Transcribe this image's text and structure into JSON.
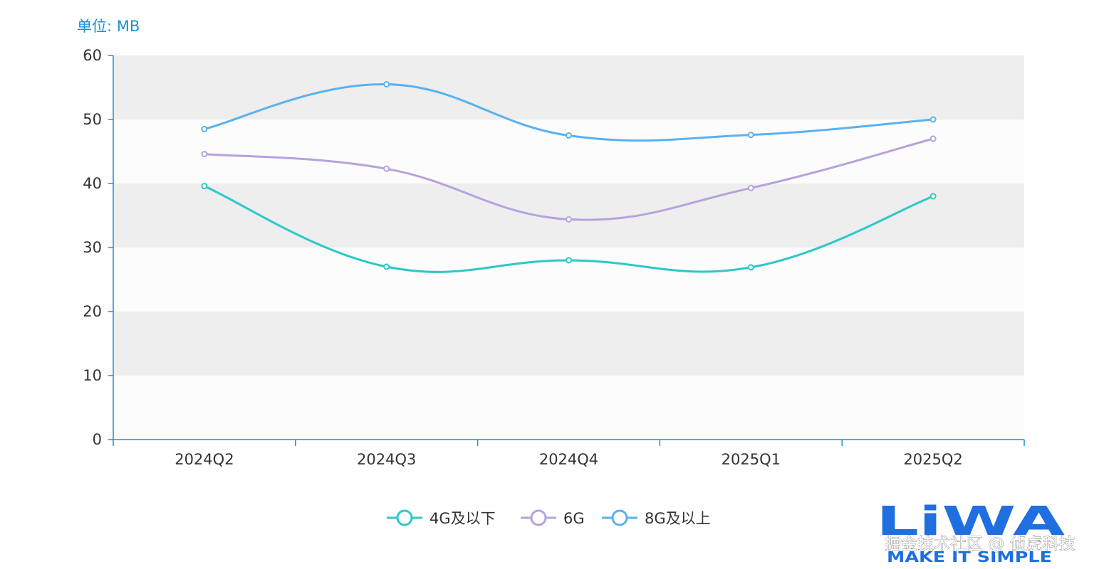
{
  "chart_data": {
    "type": "line",
    "smooth": true,
    "unit_label": "单位: MB",
    "categories": [
      "2024Q2",
      "2024Q3",
      "2024Q4",
      "2025Q1",
      "2025Q2"
    ],
    "ylim": [
      0,
      60
    ],
    "yticks": [
      0,
      10,
      20,
      30,
      40,
      50,
      60
    ],
    "grid_bands": true,
    "legend_position": "bottom-center",
    "series": [
      {
        "name": "4G及以下",
        "color": "#2ec7c9",
        "values": [
          39.6,
          27.0,
          28.0,
          26.9,
          38.0
        ]
      },
      {
        "name": "6G",
        "color": "#b6a2de",
        "values": [
          44.6,
          42.3,
          34.4,
          39.3,
          47.0
        ]
      },
      {
        "name": "8G及以上",
        "color": "#5ab1ef",
        "values": [
          48.5,
          55.5,
          47.5,
          47.6,
          50.0
        ]
      }
    ]
  },
  "branding": {
    "logo_text": "LiWA",
    "logo_tagline": "MAKE IT SIMPLE",
    "watermark": "掘金技术社区 @ 侦虎科技",
    "logo_color": "#1f6fe0"
  }
}
